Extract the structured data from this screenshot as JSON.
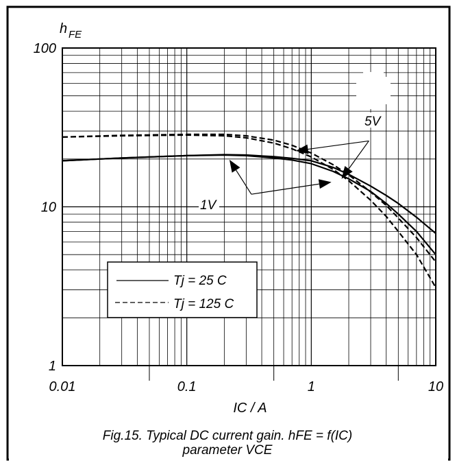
{
  "chart_data": {
    "type": "line",
    "ylabel_main": "h",
    "ylabel_sub": "FE",
    "xlabel": "IC / A",
    "caption_line1": "Fig.15.   Typical DC current gain. hFE = f(IC)",
    "caption_line2": "parameter VCE",
    "x_scale": "log",
    "y_scale": "log",
    "xlim": [
      0.01,
      10
    ],
    "ylim": [
      1,
      100
    ],
    "x_ticks": [
      "0.01",
      "0.1",
      "1",
      "10"
    ],
    "y_ticks": [
      "1",
      "10",
      "100"
    ],
    "grid": true,
    "legend_position": "lower-left",
    "legend": [
      {
        "label": "Tj = 25 C",
        "style": "solid"
      },
      {
        "label": "Tj = 125 C",
        "style": "dashed"
      }
    ],
    "annotations": [
      {
        "text": "5V",
        "x": 2.9,
        "y": 26
      },
      {
        "text": "1V",
        "x": 0.33,
        "y": 12
      }
    ],
    "series": [
      {
        "style": "solid",
        "x": [
          0.01,
          0.03,
          0.1,
          0.2,
          0.3,
          0.5,
          0.7,
          1,
          1.5,
          2,
          3,
          4,
          5,
          7,
          10
        ],
        "y": [
          19.5,
          20.3,
          21,
          21.2,
          21,
          20.3,
          19.7,
          18.7,
          16.7,
          15,
          12.5,
          10.5,
          9,
          7,
          5
        ]
      },
      {
        "style": "solid",
        "x": [
          0.01,
          0.03,
          0.1,
          0.2,
          0.3,
          0.5,
          0.7,
          1,
          1.5,
          2,
          3,
          4,
          5,
          7,
          10
        ],
        "y": [
          19.5,
          20.3,
          21,
          21.3,
          21.2,
          20.7,
          20.2,
          19.5,
          17.7,
          16,
          13.5,
          11.8,
          10.5,
          8.6,
          6.8
        ]
      },
      {
        "style": "dashed",
        "x": [
          0.01,
          0.03,
          0.1,
          0.2,
          0.3,
          0.5,
          0.7,
          1,
          1.5,
          2,
          3,
          4,
          5,
          7,
          10
        ],
        "y": [
          27.5,
          28,
          28.3,
          28,
          27.2,
          25.2,
          23.2,
          20.6,
          17.2,
          14.6,
          11,
          8.7,
          7,
          5,
          3.1
        ]
      },
      {
        "style": "dashed",
        "x": [
          0.01,
          0.03,
          0.1,
          0.2,
          0.3,
          0.5,
          0.7,
          1,
          1.5,
          2,
          3,
          4,
          5,
          7,
          10
        ],
        "y": [
          27.5,
          28.2,
          28.6,
          28.6,
          28,
          26.3,
          24.4,
          21.8,
          18.4,
          15.9,
          12.4,
          10.2,
          8.5,
          6.4,
          4.5
        ]
      }
    ],
    "arrows": [
      {
        "from": [
          0.33,
          12
        ],
        "to": [
          0.22,
          19.8
        ]
      },
      {
        "from": [
          0.33,
          12
        ],
        "to": [
          1.45,
          14.3
        ]
      },
      {
        "from": [
          2.9,
          26
        ],
        "to": [
          0.75,
          22.5
        ]
      },
      {
        "from": [
          2.9,
          26
        ],
        "to": [
          1.75,
          15
        ]
      }
    ]
  }
}
